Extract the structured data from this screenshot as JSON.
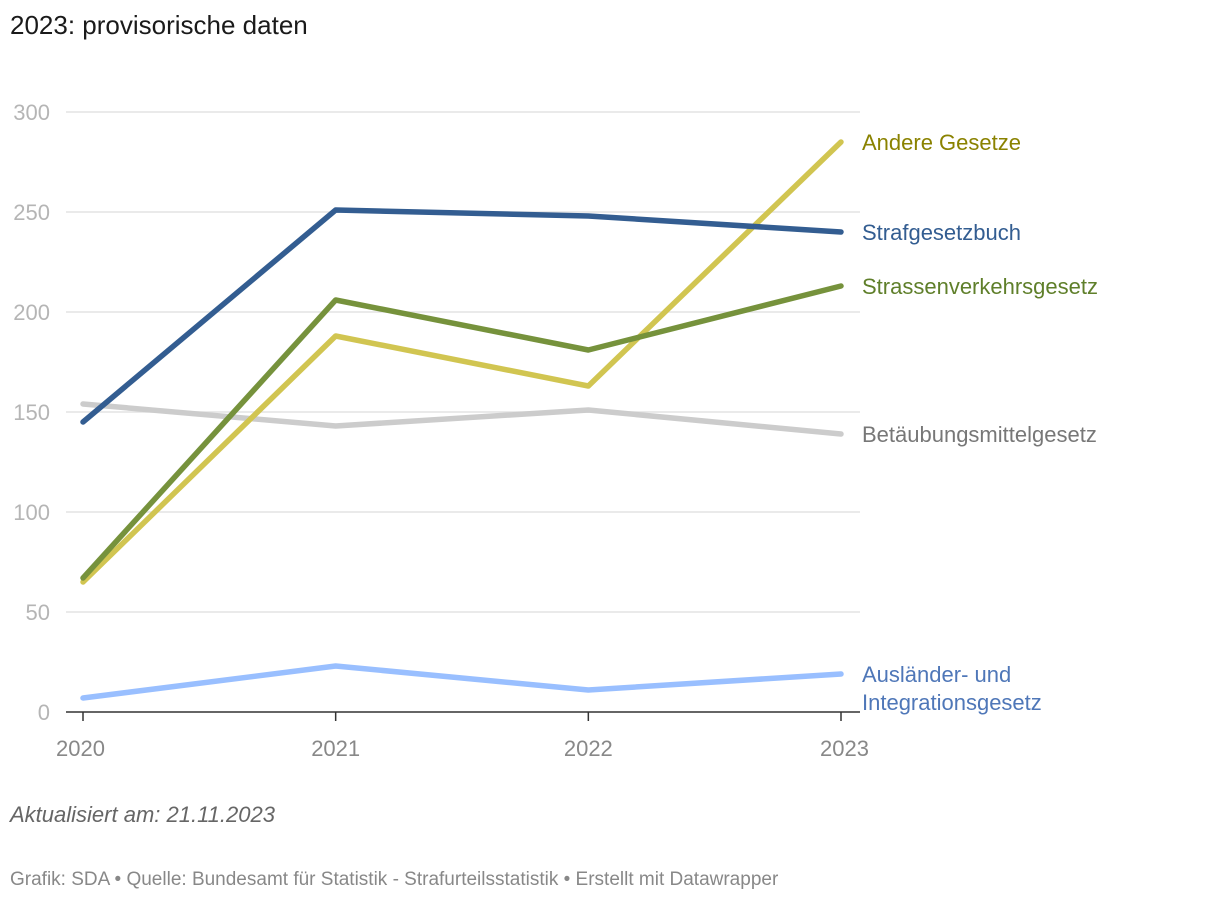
{
  "header": {
    "title": "2023: provisorische daten"
  },
  "footer": {
    "note": "Aktualisiert am: 21.11.2023",
    "source": "Grafik: SDA • Quelle: Bundesamt für Statistik - Strafurteilsstatistik • Erstellt mit Datawrapper"
  },
  "chart_data": {
    "type": "line",
    "title": "2023: provisorische daten",
    "x": [
      "2020",
      "2021",
      "2022",
      "2023"
    ],
    "y_ticks": [
      "0",
      "50",
      "100",
      "150",
      "200",
      "250",
      "300"
    ],
    "ylim": [
      0,
      300
    ],
    "grid": true,
    "legend": "direct labels right",
    "series": [
      {
        "name": "Betäubungsmittelgesetz",
        "values": [
          154,
          143,
          151,
          139
        ],
        "color": "#cccccc",
        "label_color": "#777777",
        "label_lines": [
          "Betäubungsmittelgesetz"
        ]
      },
      {
        "name": "Ausländer- und Integrationsgesetz",
        "values": [
          7,
          23,
          11,
          19
        ],
        "color": "#99bfff",
        "label_color": "#4f77b8",
        "label_lines": [
          "Ausländer- und",
          "Integrationsgesetz"
        ]
      },
      {
        "name": "Andere Gesetze",
        "values": [
          65,
          188,
          163,
          285
        ],
        "color": "#d1c551",
        "label_color": "#8a8200",
        "label_lines": [
          "Andere Gesetze"
        ]
      },
      {
        "name": "Strassenverkehrsgesetz",
        "values": [
          67,
          206,
          181,
          213
        ],
        "color": "#76923c",
        "label_color": "#5f7f2a",
        "label_lines": [
          "Strassenverkehrsgesetz"
        ]
      },
      {
        "name": "Strafgesetzbuch",
        "values": [
          145,
          251,
          248,
          240
        ],
        "color": "#335d91",
        "label_color": "#335d91",
        "label_lines": [
          "Strafgesetzbuch"
        ]
      }
    ]
  }
}
